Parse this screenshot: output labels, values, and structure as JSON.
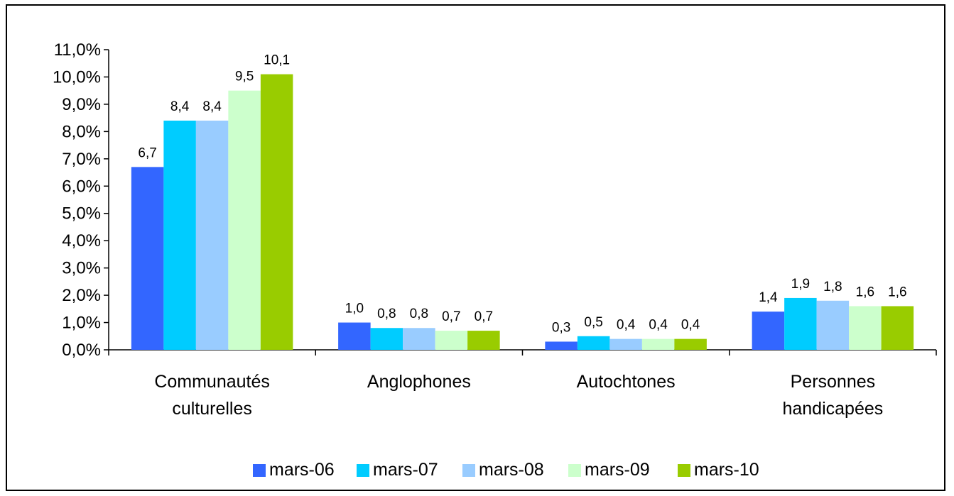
{
  "chart_data": {
    "type": "bar",
    "categories": [
      [
        "Communautés",
        "culturelles"
      ],
      [
        "Anglophones"
      ],
      [
        "Autochtones"
      ],
      [
        "Personnes",
        "handicapées"
      ]
    ],
    "series": [
      {
        "name": "mars-06",
        "color": "#3366ff",
        "values": [
          6.7,
          1.0,
          0.3,
          1.4
        ],
        "labels": [
          "6,7",
          "1,0",
          "0,3",
          "1,4"
        ]
      },
      {
        "name": "mars-07",
        "color": "#00ccff",
        "values": [
          8.4,
          0.8,
          0.5,
          1.9
        ],
        "labels": [
          "8,4",
          "0,8",
          "0,5",
          "1,9"
        ]
      },
      {
        "name": "mars-08",
        "color": "#99ccff",
        "values": [
          8.4,
          0.8,
          0.4,
          1.8
        ],
        "labels": [
          "8,4",
          "0,8",
          "0,4",
          "1,8"
        ]
      },
      {
        "name": "mars-09",
        "color": "#ccffcc",
        "values": [
          9.5,
          0.7,
          0.4,
          1.6
        ],
        "labels": [
          "9,5",
          "0,7",
          "0,4",
          "1,6"
        ]
      },
      {
        "name": "mars-10",
        "color": "#99cc00",
        "values": [
          10.1,
          0.7,
          0.4,
          1.6
        ],
        "labels": [
          "10,1",
          "0,7",
          "0,4",
          "1,6"
        ]
      }
    ],
    "yticks": [
      "0,0%",
      "1,0%",
      "2,0%",
      "3,0%",
      "4,0%",
      "5,0%",
      "6,0%",
      "7,0%",
      "8,0%",
      "9,0%",
      "10,0%",
      "11,0%"
    ],
    "ylim": [
      0,
      11
    ],
    "grid": false,
    "legend": "bottom"
  }
}
